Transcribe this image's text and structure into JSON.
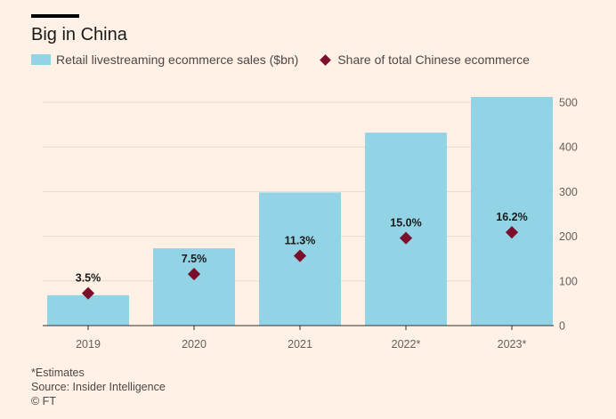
{
  "title": "Big in China",
  "colors": {
    "bar": "#92D3E6",
    "marker": "#7A0E2B",
    "grid": "#E6D9CE",
    "axis": "#33302E"
  },
  "legend": {
    "bar_label": "Retail livestreaming ecommerce sales ($bn)",
    "marker_label": "Share of total Chinese ecommerce"
  },
  "footer": {
    "note": "*Estimates",
    "source": "Source: Insider Intelligence",
    "credit": "© FT"
  },
  "chart_data": {
    "type": "bar",
    "categories": [
      "2019",
      "2020",
      "2021",
      "2022*",
      "2023*"
    ],
    "series": [
      {
        "name": "Retail livestreaming ecommerce sales ($bn)",
        "type": "bar",
        "values": [
          68,
          173,
          298,
          432,
          512
        ]
      },
      {
        "name": "Share of total Chinese ecommerce",
        "type": "marker",
        "values": [
          3.5,
          7.5,
          11.3,
          15.0,
          16.2
        ],
        "labels": [
          "3.5%",
          "7.5%",
          "11.3%",
          "15.0%",
          "16.2%"
        ]
      }
    ],
    "yticks": [
      0,
      100,
      200,
      300,
      400,
      500
    ],
    "ylim": [
      0,
      520
    ],
    "y_axis_side": "right",
    "grid": true
  }
}
